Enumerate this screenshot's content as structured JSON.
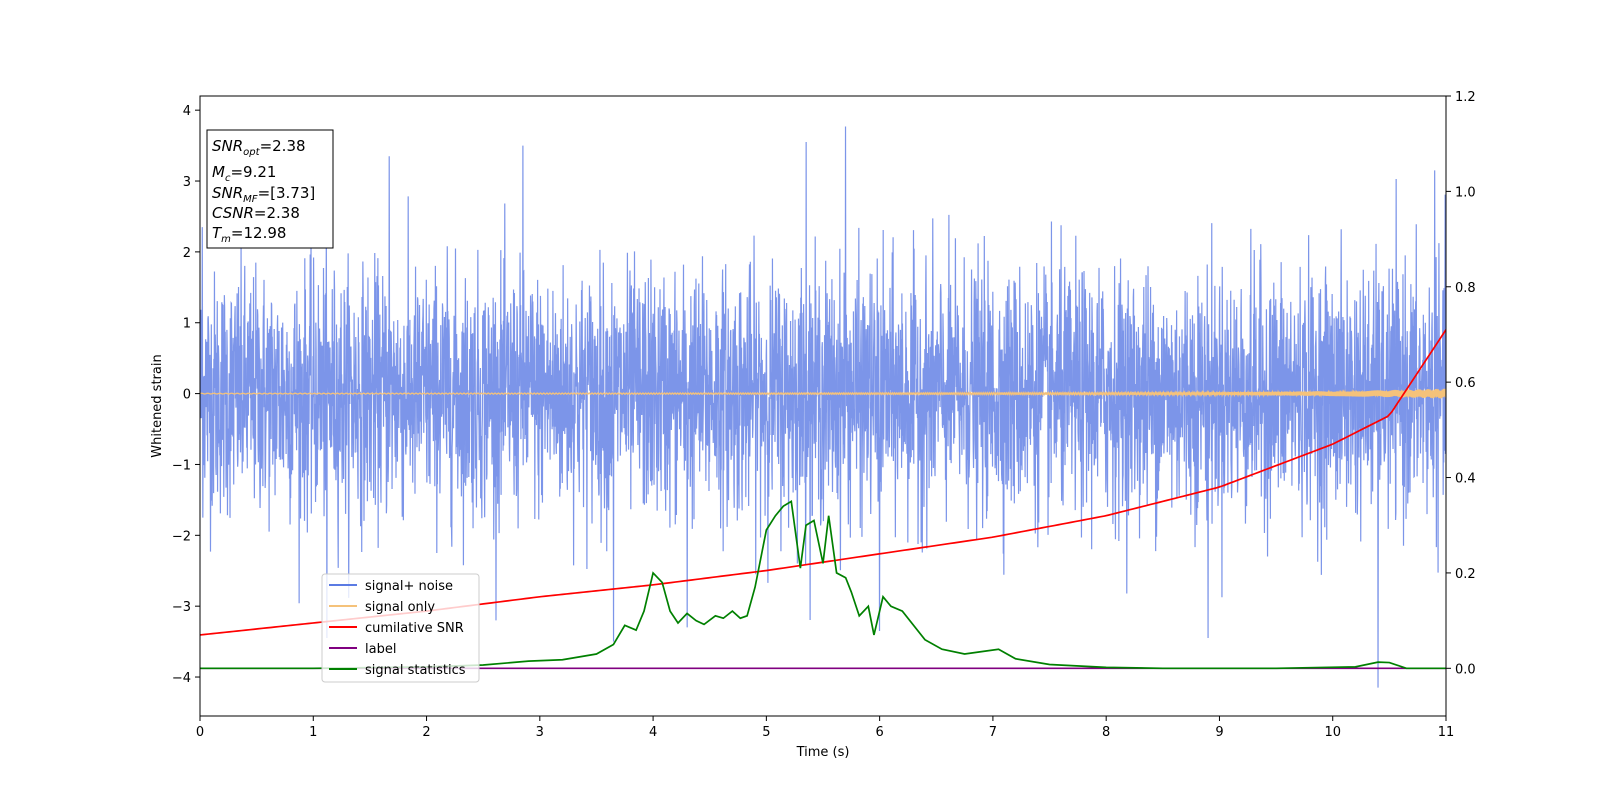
{
  "chart_data": {
    "type": "line",
    "xlabel": "Time (s)",
    "ylabel": "Whitened strain",
    "xlim": [
      0,
      11
    ],
    "ylim": [
      -4.55,
      4.2
    ],
    "y2lim": [
      -0.1,
      1.2
    ],
    "xticks": [
      "0",
      "1",
      "2",
      "3",
      "4",
      "5",
      "6",
      "7",
      "8",
      "9",
      "10",
      "11"
    ],
    "yticks": [
      "−4",
      "−3",
      "−2",
      "−1",
      "0",
      "1",
      "2",
      "3",
      "4"
    ],
    "y2ticks": [
      "0.0",
      "0.2",
      "0.4",
      "0.6",
      "0.8",
      "1.0",
      "1.2"
    ],
    "info_box": {
      "snr_opt": {
        "sym": "SNR",
        "sub": "opt",
        "val": "=2.38"
      },
      "mc": {
        "sym": "M",
        "sub": "c",
        "val": "=9.21"
      },
      "snr_mf": {
        "sym": "SNR",
        "sub": "MF",
        "val": "=[3.73]"
      },
      "csnr": {
        "sym": "CSNR",
        "sub": "",
        "val": "=2.38"
      },
      "tm": {
        "sym": "T",
        "sub": "m",
        "val": "=12.98"
      }
    },
    "legend": {
      "placement": "lower-left",
      "entries": [
        "signal+ noise",
        "signal only",
        "cumilative SNR",
        "label",
        "signal statistics"
      ]
    },
    "colors": {
      "noise": "#5b7be3",
      "signal": "#f5c27a",
      "cum_snr": "#ff0000",
      "label": "#800080",
      "stats": "#008000"
    },
    "series": [
      {
        "name": "signal+ noise",
        "axis": "left",
        "description_stats": {
          "std": 0.85,
          "max": 3.77,
          "min": -4.15
        },
        "peaks": [
          [
            0.02,
            2.35
          ],
          [
            1.67,
            3.35
          ],
          [
            2.85,
            3.5
          ],
          [
            5.35,
            3.55
          ],
          [
            5.7,
            3.77
          ],
          [
            10.4,
            -4.15
          ],
          [
            6.0,
            -3.35
          ],
          [
            8.9,
            -3.45
          ],
          [
            1.12,
            -3.45
          ],
          [
            3.65,
            -3.5
          ],
          [
            4.3,
            -3.3
          ],
          [
            10.9,
            3.15
          ]
        ]
      },
      {
        "name": "signal only",
        "axis": "left",
        "x": [
          0,
          5,
          8,
          9,
          10,
          10.5,
          11
        ],
        "y_amplitude": [
          0.005,
          0.01,
          0.015,
          0.02,
          0.035,
          0.05,
          0.07
        ]
      },
      {
        "name": "cumilative SNR",
        "axis": "right",
        "x": [
          0,
          1,
          2,
          3,
          4,
          5,
          6,
          7,
          8,
          9,
          10,
          10.5,
          11
        ],
        "y": [
          0.07,
          0.095,
          0.12,
          0.15,
          0.175,
          0.205,
          0.24,
          0.275,
          0.32,
          0.38,
          0.47,
          0.53,
          0.71
        ]
      },
      {
        "name": "label",
        "axis": "right",
        "x": [
          0,
          11
        ],
        "y": [
          0.0,
          0.0
        ]
      },
      {
        "name": "signal statistics",
        "axis": "right",
        "x": [
          0,
          1,
          2,
          2.5,
          2.9,
          3.2,
          3.5,
          3.65,
          3.75,
          3.85,
          3.92,
          4.0,
          4.08,
          4.15,
          4.22,
          4.3,
          4.38,
          4.45,
          4.55,
          4.62,
          4.7,
          4.77,
          4.83,
          4.9,
          5.0,
          5.08,
          5.15,
          5.22,
          5.3,
          5.35,
          5.42,
          5.5,
          5.55,
          5.62,
          5.7,
          5.75,
          5.82,
          5.9,
          5.95,
          6.03,
          6.1,
          6.2,
          6.4,
          6.55,
          6.75,
          6.9,
          7.05,
          7.2,
          7.5,
          8.0,
          8.5,
          9.5,
          10.2,
          10.4,
          10.5,
          10.65,
          11
        ],
        "y": [
          0.0,
          0.0,
          0.003,
          0.007,
          0.015,
          0.018,
          0.03,
          0.05,
          0.09,
          0.08,
          0.12,
          0.2,
          0.18,
          0.12,
          0.095,
          0.115,
          0.1,
          0.092,
          0.11,
          0.105,
          0.12,
          0.105,
          0.11,
          0.17,
          0.29,
          0.32,
          0.34,
          0.35,
          0.21,
          0.3,
          0.31,
          0.22,
          0.32,
          0.2,
          0.19,
          0.16,
          0.11,
          0.13,
          0.07,
          0.15,
          0.13,
          0.12,
          0.06,
          0.04,
          0.03,
          0.035,
          0.04,
          0.02,
          0.008,
          0.002,
          0.0,
          0.0,
          0.003,
          0.013,
          0.012,
          0.0,
          0.0
        ]
      }
    ]
  }
}
